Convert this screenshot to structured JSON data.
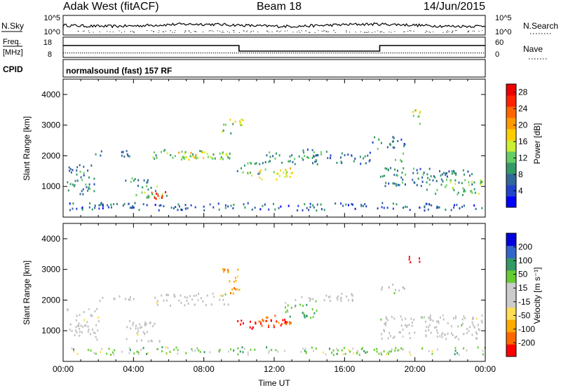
{
  "header": {
    "site": "Adak West (fitACF)",
    "beam": "Beam 18",
    "date": "14/Jun/2015"
  },
  "colors": {
    "power_scale": [
      "#0000ff",
      "#2244cc",
      "#336699",
      "#339966",
      "#66cc66",
      "#ccee33",
      "#ffcc00",
      "#ff9900",
      "#ff6600",
      "#ff2200",
      "#ee0000"
    ],
    "velocity_scale": [
      "#ff0000",
      "#ff6600",
      "#ffaa00",
      "#ffdd55",
      "#cccccc",
      "#cccccc",
      "#66cc33",
      "#339966",
      "#3366cc",
      "#0000dd"
    ],
    "ground_scatter": "#c0c0c0"
  },
  "panels": {
    "nsky": {
      "left_label": "N.Sky",
      "right_label": "N.Search",
      "left_ticks": [
        "10^5",
        "10^0"
      ],
      "right_ticks": [
        "10^5",
        "10^0"
      ]
    },
    "freq": {
      "left_label_1": "Freq.",
      "left_label_2": "[MHz]",
      "left_ticks": [
        "18",
        "8"
      ],
      "right_label": "Nave",
      "right_ticks": [
        "60",
        "0"
      ]
    },
    "cpid": {
      "label": "CPID",
      "text": "normalsound (fast) 157 RF"
    }
  },
  "chart_data": [
    {
      "type": "heatmap",
      "title": "",
      "quantity": "Power",
      "ylabel": "Slant Range [km]",
      "ylim": [
        0,
        4500
      ],
      "yticks": [
        1000,
        2000,
        3000,
        4000
      ],
      "xlim_hours": [
        0,
        24
      ],
      "x_tick_labels": [
        "00:00",
        "04:00",
        "08:00",
        "12:00",
        "16:00",
        "20:00",
        "00:00"
      ],
      "colorbar": {
        "label": "Power [dB]",
        "ticks": [
          4,
          8,
          12,
          16,
          20,
          24,
          28
        ],
        "range": [
          0,
          30
        ]
      },
      "regions": [
        {
          "t": [
            0.2,
            1.8
          ],
          "r": [
            700,
            1700
          ],
          "v": 9
        },
        {
          "t": [
            1.8,
            4.0
          ],
          "r": [
            1950,
            2150
          ],
          "v": 7
        },
        {
          "t": [
            3.5,
            5.0
          ],
          "r": [
            1000,
            1300
          ],
          "v": 8
        },
        {
          "t": [
            4.0,
            6.0
          ],
          "r": [
            600,
            1000
          ],
          "v": 11
        },
        {
          "t": [
            5.0,
            6.0
          ],
          "r": [
            550,
            850
          ],
          "v": 27
        },
        {
          "t": [
            5.0,
            9.5
          ],
          "r": [
            1800,
            2200
          ],
          "v": 12
        },
        {
          "t": [
            6.5,
            8.5
          ],
          "r": [
            1800,
            2100
          ],
          "v": 16
        },
        {
          "t": [
            9.0,
            10.2
          ],
          "r": [
            2700,
            3200
          ],
          "v": 14
        },
        {
          "t": [
            9.8,
            11.5
          ],
          "r": [
            1400,
            1800
          ],
          "v": 10
        },
        {
          "t": [
            10.5,
            13.0
          ],
          "r": [
            1200,
            1600
          ],
          "v": 16
        },
        {
          "t": [
            11.5,
            14.5
          ],
          "r": [
            1700,
            2100
          ],
          "v": 9
        },
        {
          "t": [
            13.5,
            16.0
          ],
          "r": [
            1900,
            2200
          ],
          "v": 8
        },
        {
          "t": [
            15.5,
            17.5
          ],
          "r": [
            1700,
            2100
          ],
          "v": 7
        },
        {
          "t": [
            17.5,
            19.5
          ],
          "r": [
            2200,
            2600
          ],
          "v": 8
        },
        {
          "t": [
            18.8,
            19.3
          ],
          "r": [
            1800,
            2100
          ],
          "v": 12
        },
        {
          "t": [
            19.6,
            20.3
          ],
          "r": [
            3000,
            3500
          ],
          "v": 15
        },
        {
          "t": [
            18.0,
            22.0
          ],
          "r": [
            1000,
            1600
          ],
          "v": 8
        },
        {
          "t": [
            20.5,
            23.8
          ],
          "r": [
            700,
            1200
          ],
          "v": 12
        },
        {
          "t": [
            21.0,
            23.5
          ],
          "r": [
            1300,
            1600
          ],
          "v": 7
        },
        {
          "t": [
            0.0,
            24.0
          ],
          "r": [
            200,
            450
          ],
          "v": 6
        }
      ]
    },
    {
      "type": "heatmap",
      "title": "",
      "quantity": "Velocity",
      "ylabel": "Slant Range [km]",
      "ylim": [
        0,
        4500
      ],
      "yticks": [
        1000,
        2000,
        3000,
        4000
      ],
      "xlim_hours": [
        0,
        24
      ],
      "x_tick_labels": [
        "00:00",
        "04:00",
        "08:00",
        "12:00",
        "16:00",
        "20:00",
        "00:00"
      ],
      "xlabel": "Time UT",
      "colorbar": {
        "label": "Velocity [m s⁻¹]",
        "ticks": [
          200,
          100,
          50,
          15,
          -15,
          -50,
          -100,
          -200
        ]
      },
      "regions": [
        {
          "t": [
            0.2,
            2.0
          ],
          "r": [
            700,
            1700
          ],
          "v": 0,
          "gs": true
        },
        {
          "t": [
            2.0,
            4.0
          ],
          "r": [
            1950,
            2150
          ],
          "v": 0,
          "gs": true
        },
        {
          "t": [
            3.5,
            5.5
          ],
          "r": [
            600,
            1300
          ],
          "v": 0,
          "gs": true
        },
        {
          "t": [
            5.0,
            9.5
          ],
          "r": [
            1800,
            2200
          ],
          "v": 0,
          "gs": true
        },
        {
          "t": [
            9.0,
            10.0
          ],
          "r": [
            2200,
            3000
          ],
          "v": -80
        },
        {
          "t": [
            9.8,
            13.0
          ],
          "r": [
            1050,
            1350
          ],
          "v": -250
        },
        {
          "t": [
            11.0,
            13.0
          ],
          "r": [
            1150,
            1500
          ],
          "v": -120
        },
        {
          "t": [
            12.5,
            14.5
          ],
          "r": [
            1400,
            1900
          ],
          "v": 30
        },
        {
          "t": [
            13.0,
            16.5
          ],
          "r": [
            1900,
            2200
          ],
          "v": 0,
          "gs": true
        },
        {
          "t": [
            18.0,
            19.5
          ],
          "r": [
            2200,
            2500
          ],
          "v": 0,
          "gs": true
        },
        {
          "t": [
            19.6,
            20.3
          ],
          "r": [
            3100,
            3400
          ],
          "v": -250
        },
        {
          "t": [
            18.0,
            23.8
          ],
          "r": [
            700,
            1500
          ],
          "v": 0,
          "gs": true
        },
        {
          "t": [
            0.0,
            24.0
          ],
          "r": [
            200,
            450
          ],
          "v": 20
        }
      ]
    }
  ]
}
